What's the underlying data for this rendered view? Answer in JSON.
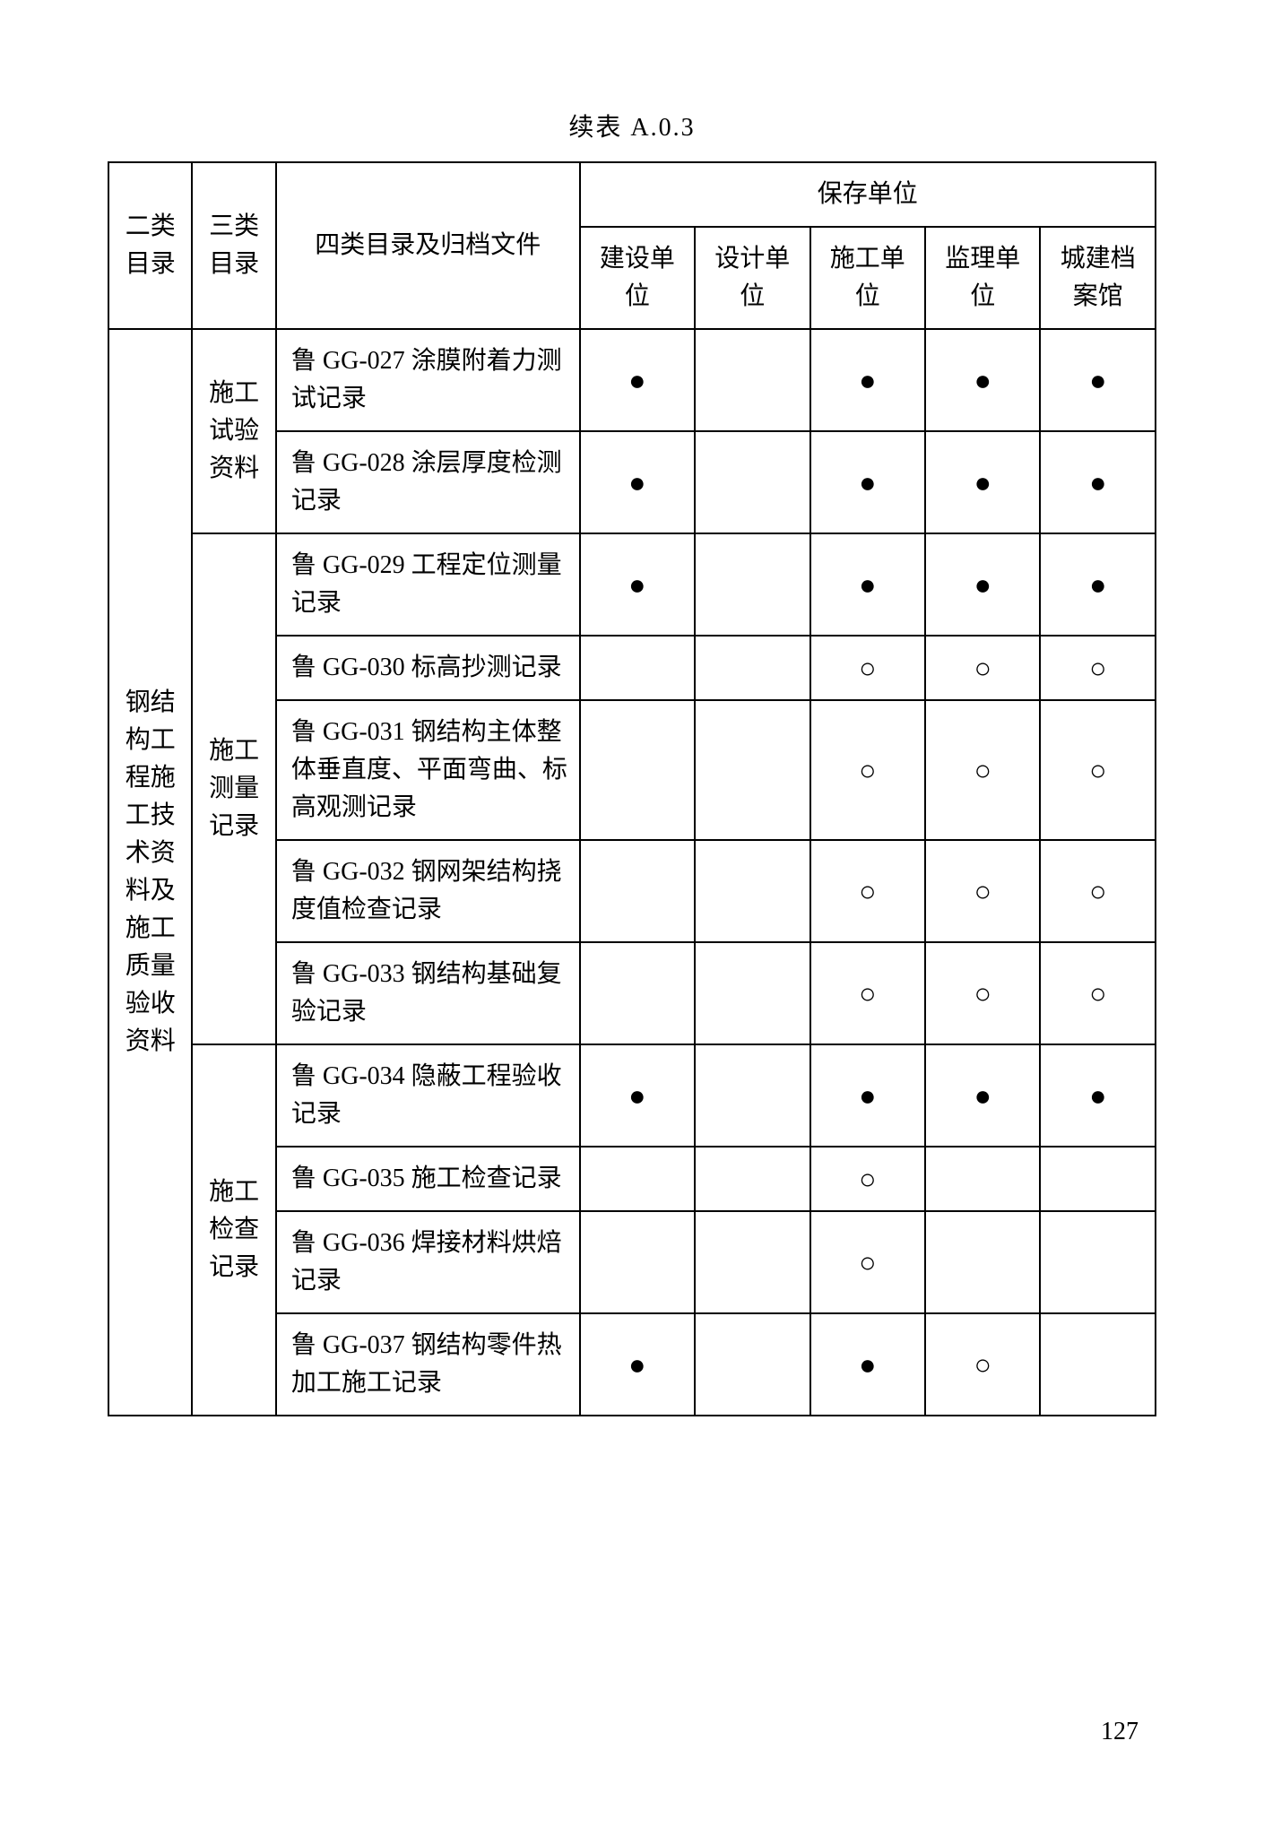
{
  "title": "续表 A.0.3",
  "pageNumber": "127",
  "headers": {
    "cat2": "二类目录",
    "cat3": "三类目录",
    "fileCol": "四类目录及归档文件",
    "storageUnit": "保存单位",
    "unit1": "建设单位",
    "unit2": "设计单位",
    "unit3": "施工单位",
    "unit4": "监理单位",
    "unit5": "城建档案馆"
  },
  "cat2Label": "钢结构工程施工技术资料及施工质量验收资料",
  "groups": [
    {
      "cat3": "施工试验资料",
      "rows": [
        {
          "file": "鲁 GG-027 涂膜附着力测试记录",
          "marks": [
            "●",
            "",
            "●",
            "●",
            "●"
          ]
        },
        {
          "file": "鲁 GG-028 涂层厚度检测记录",
          "marks": [
            "●",
            "",
            "●",
            "●",
            "●"
          ]
        }
      ]
    },
    {
      "cat3": "施工测量记录",
      "rows": [
        {
          "file": "鲁 GG-029 工程定位测量记录",
          "marks": [
            "●",
            "",
            "●",
            "●",
            "●"
          ]
        },
        {
          "file": "鲁 GG-030 标高抄测记录",
          "marks": [
            "",
            "",
            "○",
            "○",
            "○"
          ]
        },
        {
          "file": "鲁 GG-031 钢结构主体整体垂直度、平面弯曲、标高观测记录",
          "marks": [
            "",
            "",
            "○",
            "○",
            "○"
          ]
        },
        {
          "file": "鲁 GG-032 钢网架结构挠度值检查记录",
          "marks": [
            "",
            "",
            "○",
            "○",
            "○"
          ]
        },
        {
          "file": "鲁 GG-033 钢结构基础复验记录",
          "marks": [
            "",
            "",
            "○",
            "○",
            "○"
          ]
        }
      ]
    },
    {
      "cat3": "施工检查记录",
      "rows": [
        {
          "file": "鲁 GG-034 隐蔽工程验收记录",
          "marks": [
            "●",
            "",
            "●",
            "●",
            "●"
          ]
        },
        {
          "file": "鲁 GG-035 施工检查记录",
          "marks": [
            "",
            "",
            "○",
            "",
            ""
          ]
        },
        {
          "file": "鲁 GG-036 焊接材料烘焙记录",
          "marks": [
            "",
            "",
            "○",
            "",
            ""
          ]
        },
        {
          "file": "鲁 GG-037 钢结构零件热加工施工记录",
          "marks": [
            "●",
            "",
            "●",
            "○",
            ""
          ]
        }
      ]
    }
  ],
  "markerStyles": {
    "filled": "●",
    "hollow": "○"
  },
  "colors": {
    "text": "#000000",
    "background": "#ffffff",
    "border": "#000000"
  }
}
